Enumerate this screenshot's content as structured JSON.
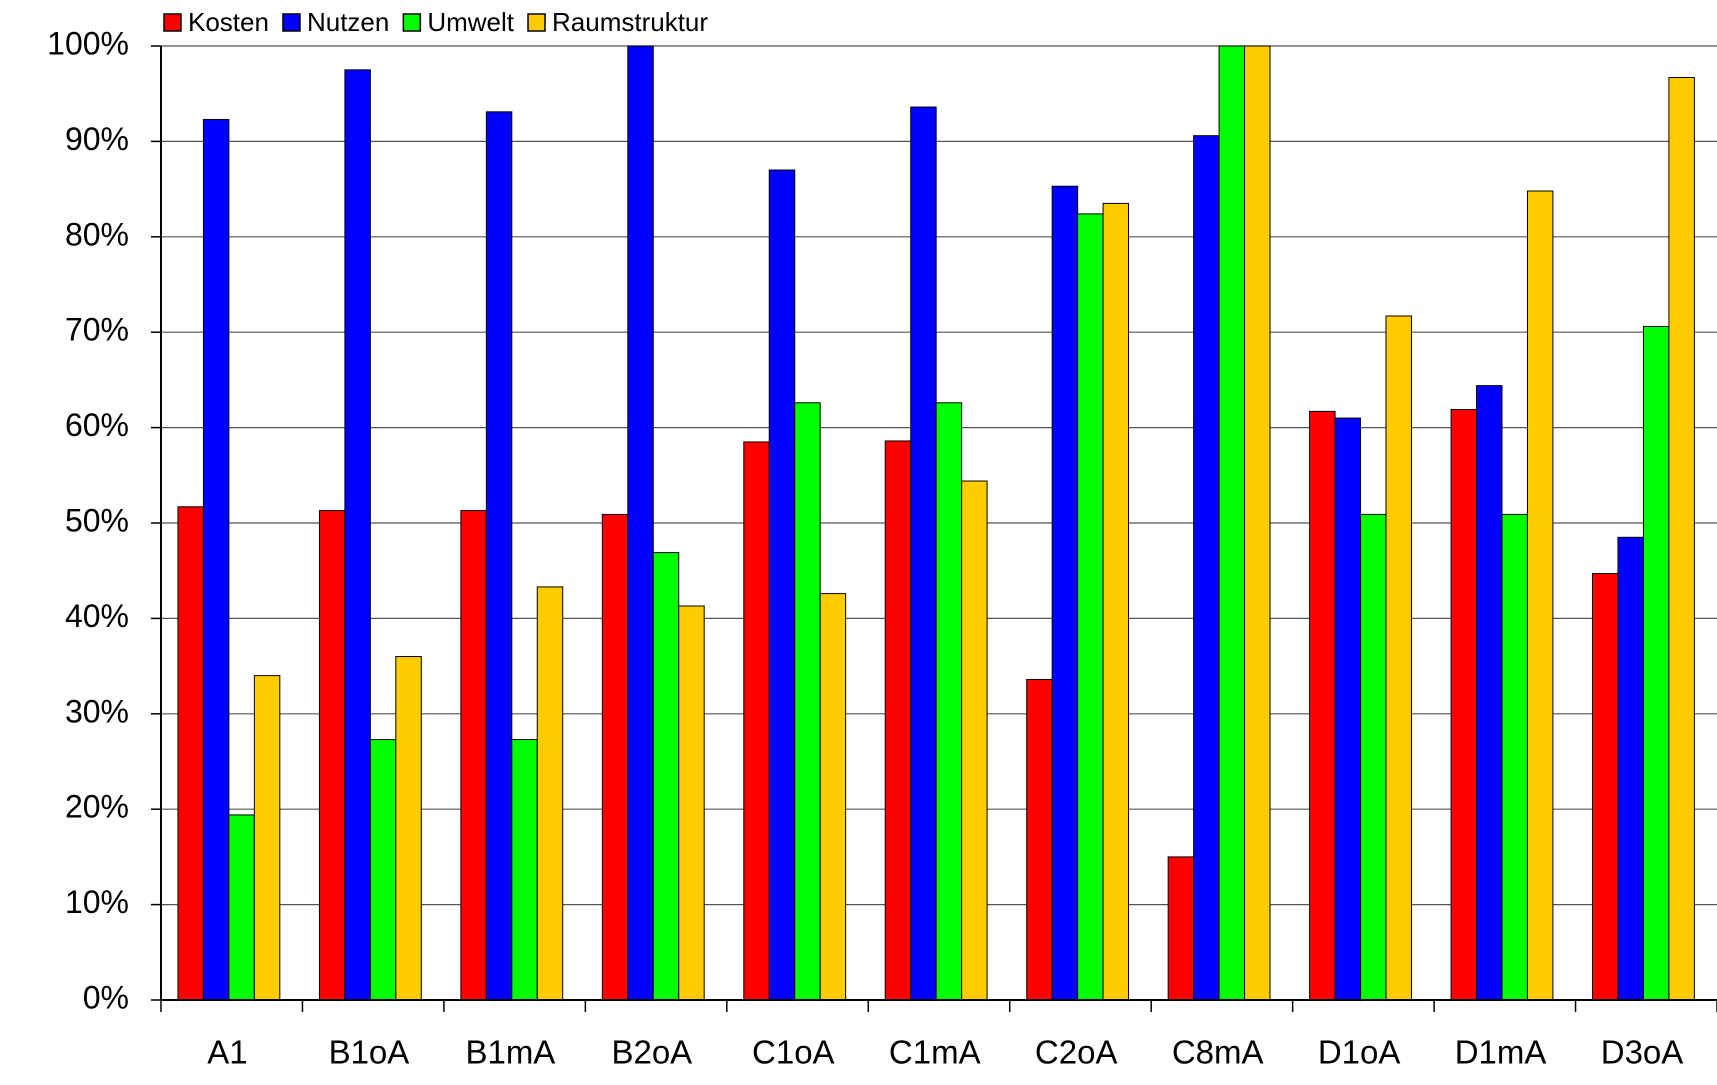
{
  "chart_data": {
    "type": "bar",
    "categories": [
      "A1",
      "B1oA",
      "B1mA",
      "B2oA",
      "C1oA",
      "C1mA",
      "C2oA",
      "C8mA",
      "D1oA",
      "D1mA",
      "D3oA"
    ],
    "series": [
      {
        "name": "Kosten",
        "color": "#ff0000",
        "values": [
          51.7,
          51.3,
          51.3,
          50.9,
          58.5,
          58.6,
          33.6,
          15.0,
          61.7,
          61.9,
          44.7
        ]
      },
      {
        "name": "Nutzen",
        "color": "#0000ff",
        "values": [
          92.3,
          97.5,
          93.1,
          100,
          87.0,
          93.6,
          85.3,
          90.6,
          61.0,
          64.4,
          48.5
        ]
      },
      {
        "name": "Umwelt",
        "color": "#00ff00",
        "values": [
          19.4,
          27.3,
          27.3,
          46.9,
          62.6,
          62.6,
          82.4,
          100,
          50.9,
          50.9,
          70.6
        ]
      },
      {
        "name": "Raumstruktur",
        "color": "#ffcc00",
        "values": [
          34.0,
          36.0,
          43.3,
          41.3,
          42.6,
          54.4,
          83.5,
          100,
          71.7,
          84.8,
          96.7
        ]
      }
    ],
    "ylim": [
      0,
      100
    ],
    "yticks": [
      {
        "value": 0,
        "label": "0%"
      },
      {
        "value": 10,
        "label": "10%"
      },
      {
        "value": 20,
        "label": "20%"
      },
      {
        "value": 30,
        "label": "30%"
      },
      {
        "value": 40,
        "label": "40%"
      },
      {
        "value": 50,
        "label": "50%"
      },
      {
        "value": 60,
        "label": "60%"
      },
      {
        "value": 70,
        "label": "70%"
      },
      {
        "value": 80,
        "label": "80%"
      },
      {
        "value": 90,
        "label": "90%"
      },
      {
        "value": 100,
        "label": "100%"
      }
    ],
    "grid": true
  }
}
